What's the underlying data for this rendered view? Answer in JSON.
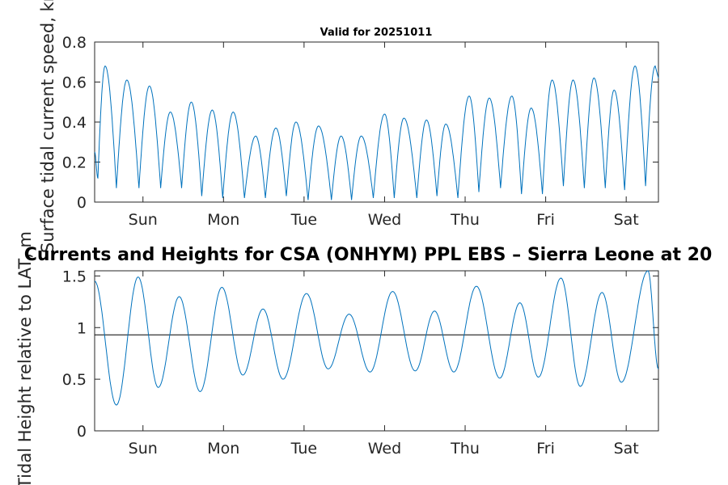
{
  "figure": {
    "main_title": "Currents and Heights for CSA (ONHYM) PPL EBS  – Sierra Leone at 20",
    "colors": {
      "series": "#0072BD",
      "axis": "#262626",
      "reference_line": "#000000",
      "background": "#ffffff"
    }
  },
  "chart_data": [
    {
      "type": "line",
      "title": "Valid for 20251011",
      "xlabel": "",
      "ylabel": "Surface tidal current speed, kn",
      "xlim": [
        0.4,
        7.4
      ],
      "ylim": [
        0,
        0.8
      ],
      "yticks": [
        0,
        0.2,
        0.4,
        0.6,
        0.8
      ],
      "ytick_labels": [
        "0",
        "0.2",
        "0.4",
        "0.6",
        "0.8"
      ],
      "xticks": [
        1,
        2,
        3,
        4,
        5,
        6,
        7
      ],
      "xtick_labels": [
        "Sun",
        "Mon",
        "Tue",
        "Wed",
        "Thu",
        "Fri",
        "Sat"
      ],
      "series": [
        {
          "name": "Surface tidal current speed",
          "peaks": [
            [
              0.53,
              0.68
            ],
            [
              0.8,
              0.61
            ],
            [
              1.08,
              0.58
            ],
            [
              1.34,
              0.45
            ],
            [
              1.6,
              0.5
            ],
            [
              1.86,
              0.46
            ],
            [
              2.12,
              0.45
            ],
            [
              2.4,
              0.33
            ],
            [
              2.65,
              0.37
            ],
            [
              2.9,
              0.4
            ],
            [
              3.18,
              0.38
            ],
            [
              3.46,
              0.33
            ],
            [
              3.71,
              0.33
            ],
            [
              4.0,
              0.44
            ],
            [
              4.24,
              0.42
            ],
            [
              4.52,
              0.41
            ],
            [
              4.76,
              0.39
            ],
            [
              5.05,
              0.53
            ],
            [
              5.3,
              0.52
            ],
            [
              5.58,
              0.53
            ],
            [
              5.82,
              0.47
            ],
            [
              6.08,
              0.61
            ],
            [
              6.34,
              0.61
            ],
            [
              6.6,
              0.62
            ],
            [
              6.85,
              0.56
            ],
            [
              7.11,
              0.68
            ],
            [
              7.36,
              0.68
            ]
          ],
          "troughs": [
            [
              0.44,
              0.12
            ],
            [
              0.67,
              0.07
            ],
            [
              0.95,
              0.07
            ],
            [
              1.22,
              0.07
            ],
            [
              1.48,
              0.07
            ],
            [
              1.73,
              0.03
            ],
            [
              1.99,
              0.02
            ],
            [
              2.26,
              0.02
            ],
            [
              2.52,
              0.02
            ],
            [
              2.78,
              0.03
            ],
            [
              3.05,
              0.01
            ],
            [
              3.34,
              0.01
            ],
            [
              3.59,
              0.01
            ],
            [
              3.86,
              0.02
            ],
            [
              4.12,
              0.02
            ],
            [
              4.4,
              0.02
            ],
            [
              4.65,
              0.03
            ],
            [
              4.91,
              0.02
            ],
            [
              5.17,
              0.05
            ],
            [
              5.44,
              0.07
            ],
            [
              5.7,
              0.04
            ],
            [
              5.96,
              0.04
            ],
            [
              6.22,
              0.08
            ],
            [
              6.48,
              0.07
            ],
            [
              6.74,
              0.07
            ],
            [
              6.98,
              0.06
            ],
            [
              7.24,
              0.08
            ]
          ]
        }
      ]
    },
    {
      "type": "line",
      "title": "",
      "xlabel": "",
      "ylabel": "Tidal Height relative to LAT, m",
      "xlim": [
        0.4,
        7.4
      ],
      "ylim": [
        0,
        1.55
      ],
      "yticks": [
        0,
        0.5,
        1,
        1.5
      ],
      "ytick_labels": [
        "0",
        "0.5",
        "1",
        "1.5"
      ],
      "xticks": [
        1,
        2,
        3,
        4,
        5,
        6,
        7
      ],
      "xtick_labels": [
        "Sun",
        "Mon",
        "Tue",
        "Wed",
        "Thu",
        "Fri",
        "Sat"
      ],
      "reference_level": 0.93,
      "series": [
        {
          "name": "Tidal height",
          "extrema": [
            [
              0.4,
              1.45
            ],
            [
              0.67,
              0.25
            ],
            [
              0.94,
              1.49
            ],
            [
              1.19,
              0.42
            ],
            [
              1.45,
              1.3
            ],
            [
              1.71,
              0.38
            ],
            [
              1.98,
              1.39
            ],
            [
              2.24,
              0.54
            ],
            [
              2.49,
              1.18
            ],
            [
              2.74,
              0.5
            ],
            [
              3.03,
              1.33
            ],
            [
              3.3,
              0.6
            ],
            [
              3.56,
              1.13
            ],
            [
              3.82,
              0.57
            ],
            [
              4.1,
              1.35
            ],
            [
              4.38,
              0.58
            ],
            [
              4.62,
              1.16
            ],
            [
              4.86,
              0.57
            ],
            [
              5.14,
              1.4
            ],
            [
              5.43,
              0.51
            ],
            [
              5.68,
              1.24
            ],
            [
              5.91,
              0.52
            ],
            [
              6.19,
              1.48
            ],
            [
              6.43,
              0.43
            ],
            [
              6.7,
              1.34
            ],
            [
              6.94,
              0.47
            ],
            [
              7.27,
              1.55
            ],
            [
              7.4,
              0.6
            ]
          ]
        }
      ]
    }
  ]
}
